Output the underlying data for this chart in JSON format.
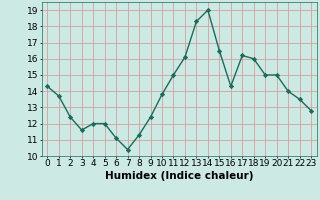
{
  "x": [
    0,
    1,
    2,
    3,
    4,
    5,
    6,
    7,
    8,
    9,
    10,
    11,
    12,
    13,
    14,
    15,
    16,
    17,
    18,
    19,
    20,
    21,
    22,
    23
  ],
  "y": [
    14.3,
    13.7,
    12.4,
    11.6,
    12.0,
    12.0,
    11.1,
    10.4,
    11.3,
    12.4,
    13.8,
    15.0,
    16.1,
    18.3,
    19.0,
    16.5,
    14.3,
    16.2,
    16.0,
    15.0,
    15.0,
    14.0,
    13.5,
    12.8
  ],
  "line_color": "#1a6b5a",
  "marker": "D",
  "markersize": 2.2,
  "linewidth": 1.0,
  "xlabel": "Humidex (Indice chaleur)",
  "ylabel_ticks": [
    10,
    11,
    12,
    13,
    14,
    15,
    16,
    17,
    18,
    19
  ],
  "xlim": [
    -0.5,
    23.5
  ],
  "ylim": [
    10.0,
    19.5
  ],
  "bg_color": "#cce9e4",
  "grid_color": "#d4a0a0",
  "xlabel_fontsize": 7.5,
  "tick_fontsize": 6.5
}
